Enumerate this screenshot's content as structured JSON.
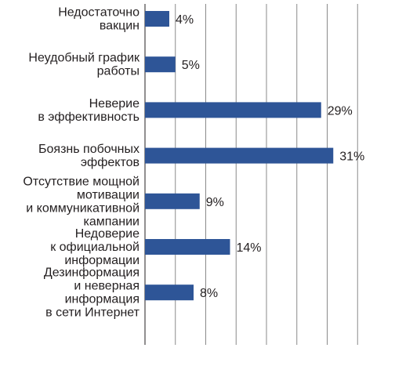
{
  "chart_data": {
    "type": "bar",
    "orientation": "horizontal",
    "categories": [
      [
        "Недостаточно",
        "вакцин"
      ],
      [
        "Неудобный график",
        "работы"
      ],
      [
        "Неверие",
        "в эффективность"
      ],
      [
        "Боязнь побочных",
        "эффектов"
      ],
      [
        "Отсутствие мощной",
        "мотивации",
        "и коммуникативной",
        "кампании"
      ],
      [
        "Недоверие",
        "к официальной",
        "информации"
      ],
      [
        "Дезинформация",
        "и неверная",
        "информация",
        "в сети Интернет"
      ]
    ],
    "values": [
      4,
      5,
      29,
      31,
      9,
      14,
      8
    ],
    "value_labels": [
      "4%",
      "5%",
      "29%",
      "31%",
      "9%",
      "14%",
      "8%"
    ],
    "title": "",
    "xlabel": "",
    "ylabel": "",
    "xlim": [
      0,
      35
    ],
    "grid": "vertical",
    "legend": "none",
    "bar_color": "#2e5597",
    "grid_color": "#8a8a8a"
  }
}
